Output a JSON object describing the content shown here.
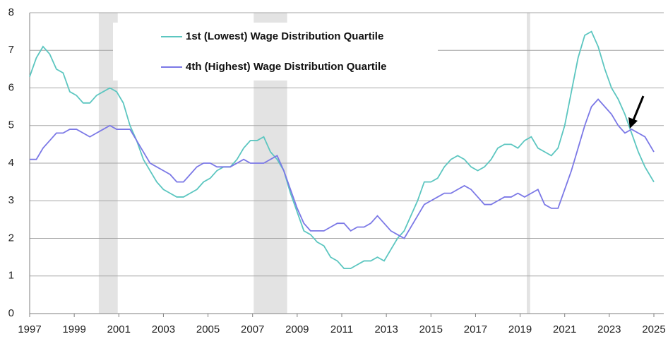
{
  "chart_data": {
    "type": "line",
    "x": [
      1997.0,
      1997.3,
      1997.6,
      1997.9,
      1998.2,
      1998.5,
      1998.8,
      1999.1,
      1999.4,
      1999.7,
      2000.0,
      2000.3,
      2000.6,
      2000.9,
      2001.2,
      2001.5,
      2001.8,
      2002.1,
      2002.4,
      2002.7,
      2003.0,
      2003.3,
      2003.6,
      2003.9,
      2004.2,
      2004.5,
      2004.8,
      2005.1,
      2005.4,
      2005.7,
      2006.0,
      2006.3,
      2006.6,
      2006.9,
      2007.2,
      2007.5,
      2007.8,
      2008.1,
      2008.4,
      2008.7,
      2009.0,
      2009.3,
      2009.6,
      2009.9,
      2010.2,
      2010.5,
      2010.8,
      2011.1,
      2011.4,
      2011.7,
      2012.0,
      2012.3,
      2012.6,
      2012.9,
      2013.2,
      2013.5,
      2013.8,
      2014.1,
      2014.4,
      2014.7,
      2015.0,
      2015.3,
      2015.6,
      2015.9,
      2016.2,
      2016.5,
      2016.8,
      2017.1,
      2017.4,
      2017.7,
      2018.0,
      2018.3,
      2018.6,
      2018.9,
      2019.2,
      2019.5,
      2019.8,
      2020.1,
      2020.4,
      2020.7,
      2021.0,
      2021.3,
      2021.6,
      2021.9,
      2022.2,
      2022.5,
      2022.8,
      2023.1,
      2023.4,
      2023.7,
      2024.0,
      2024.3,
      2024.6,
      2024.9,
      2025.0
    ],
    "series": [
      {
        "name": "1st (Lowest) Wage Distribution Quartile",
        "color": "#5cc6c0",
        "values": [
          6.3,
          6.8,
          7.1,
          6.9,
          6.5,
          6.4,
          5.9,
          5.8,
          5.6,
          5.6,
          5.8,
          5.9,
          6.0,
          5.9,
          5.6,
          5.0,
          4.6,
          4.1,
          3.8,
          3.5,
          3.3,
          3.2,
          3.1,
          3.1,
          3.2,
          3.3,
          3.5,
          3.6,
          3.8,
          3.9,
          3.9,
          4.1,
          4.4,
          4.6,
          4.6,
          4.7,
          4.3,
          4.1,
          3.8,
          3.2,
          2.7,
          2.2,
          2.1,
          1.9,
          1.8,
          1.5,
          1.4,
          1.2,
          1.2,
          1.3,
          1.4,
          1.4,
          1.5,
          1.4,
          1.7,
          2.0,
          2.2,
          2.6,
          3.0,
          3.5,
          3.5,
          3.6,
          3.9,
          4.1,
          4.2,
          4.1,
          3.9,
          3.8,
          3.9,
          4.1,
          4.4,
          4.5,
          4.5,
          4.4,
          4.6,
          4.7,
          4.4,
          4.3,
          4.2,
          4.4,
          5.0,
          5.9,
          6.8,
          7.4,
          7.5,
          7.1,
          6.5,
          6.0,
          5.7,
          5.3,
          4.8,
          4.3,
          3.9,
          3.6,
          3.5
        ]
      },
      {
        "name": "4th (Highest) Wage Distribution Quartile",
        "color": "#7b78e6",
        "values": [
          4.1,
          4.1,
          4.4,
          4.6,
          4.8,
          4.8,
          4.9,
          4.9,
          4.8,
          4.7,
          4.8,
          4.9,
          5.0,
          4.9,
          4.9,
          4.9,
          4.6,
          4.3,
          4.0,
          3.9,
          3.8,
          3.7,
          3.5,
          3.5,
          3.7,
          3.9,
          4.0,
          4.0,
          3.9,
          3.9,
          3.9,
          4.0,
          4.1,
          4.0,
          4.0,
          4.0,
          4.1,
          4.2,
          3.8,
          3.3,
          2.8,
          2.4,
          2.2,
          2.2,
          2.2,
          2.3,
          2.4,
          2.4,
          2.2,
          2.3,
          2.3,
          2.4,
          2.6,
          2.4,
          2.2,
          2.1,
          2.0,
          2.3,
          2.6,
          2.9,
          3.0,
          3.1,
          3.2,
          3.2,
          3.3,
          3.4,
          3.3,
          3.1,
          2.9,
          2.9,
          3.0,
          3.1,
          3.1,
          3.2,
          3.1,
          3.2,
          3.3,
          2.9,
          2.8,
          2.8,
          3.3,
          3.8,
          4.4,
          5.0,
          5.5,
          5.7,
          5.5,
          5.3,
          5.0,
          4.8,
          4.9,
          4.8,
          4.7,
          4.4,
          4.3
        ]
      }
    ],
    "shaded": [
      [
        2000.1,
        2000.95
      ],
      [
        2007.05,
        2008.55
      ],
      [
        2019.3,
        2019.45
      ]
    ],
    "xlim": [
      1997,
      2025
    ],
    "xticks": [
      1997,
      1999,
      2001,
      2003,
      2005,
      2007,
      2009,
      2011,
      2013,
      2015,
      2017,
      2019,
      2021,
      2023,
      2025
    ],
    "ylim": [
      0,
      8
    ],
    "yticks": [
      0,
      1,
      2,
      3,
      4,
      5,
      6,
      7,
      8
    ],
    "grid": true
  }
}
